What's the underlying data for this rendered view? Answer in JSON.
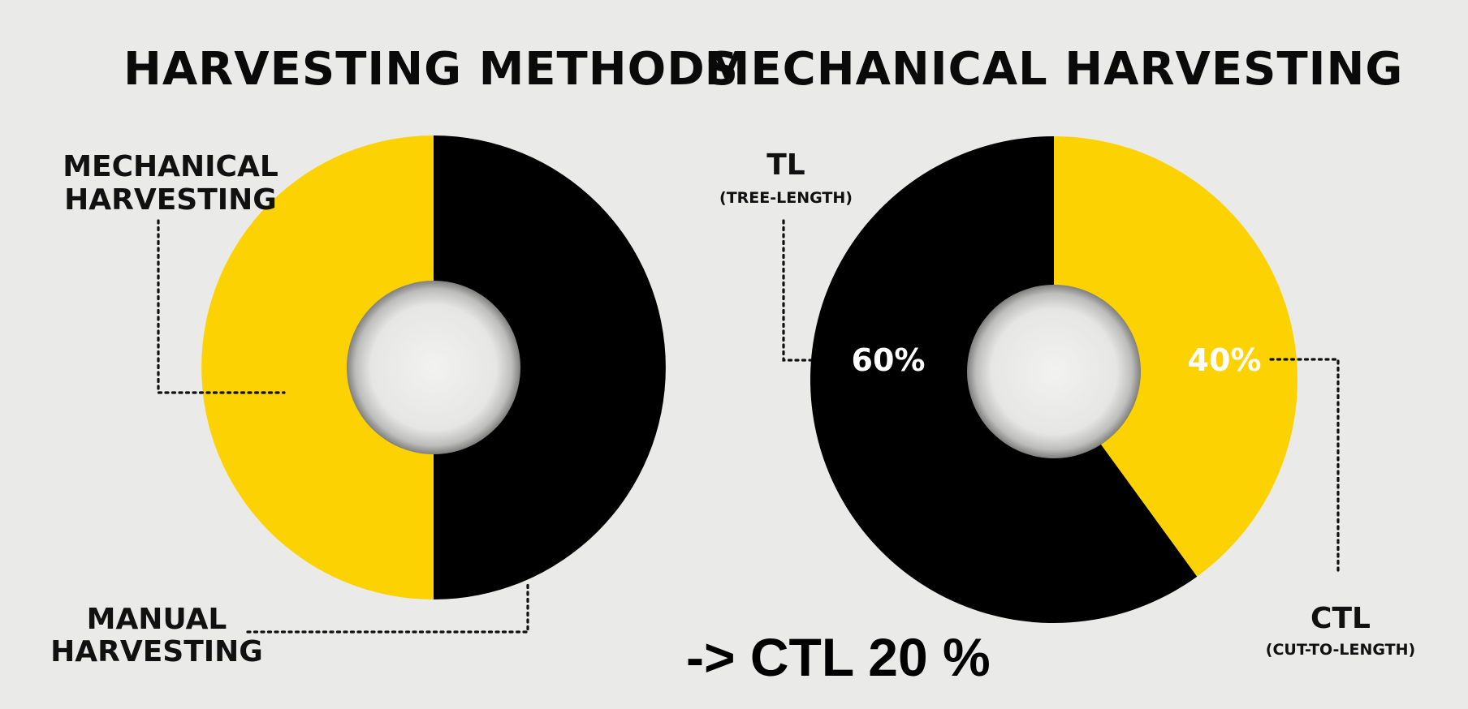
{
  "colors": {
    "background": "#eaeae9",
    "yellow": "#fcd203",
    "black": "#000000"
  },
  "chart_data": [
    {
      "type": "pie",
      "title": "HARVESTING METHODS",
      "slices": [
        {
          "label": "MECHANICAL HARVESTING",
          "value": 50,
          "color": "#fcd203"
        },
        {
          "label": "MANUAL HARVESTING",
          "value": 50,
          "color": "#000000"
        }
      ]
    },
    {
      "type": "pie",
      "title": "MECHANICAL HARVESTING",
      "slices": [
        {
          "label": "TL",
          "sublabel": "(TREE-LENGTH)",
          "value": 60,
          "display": "60%",
          "color": "#000000"
        },
        {
          "label": "CTL",
          "sublabel": "(CUT-TO-LENGTH)",
          "value": 40,
          "display": "40%",
          "color": "#fcd203"
        }
      ]
    }
  ],
  "labels": {
    "left_mech_line1": "MECHANICAL",
    "left_mech_line2": "HARVESTING",
    "left_manual_line1": "MANUAL",
    "left_manual_line2": "HARVESTING"
  },
  "note": "-> CTL 20 %"
}
